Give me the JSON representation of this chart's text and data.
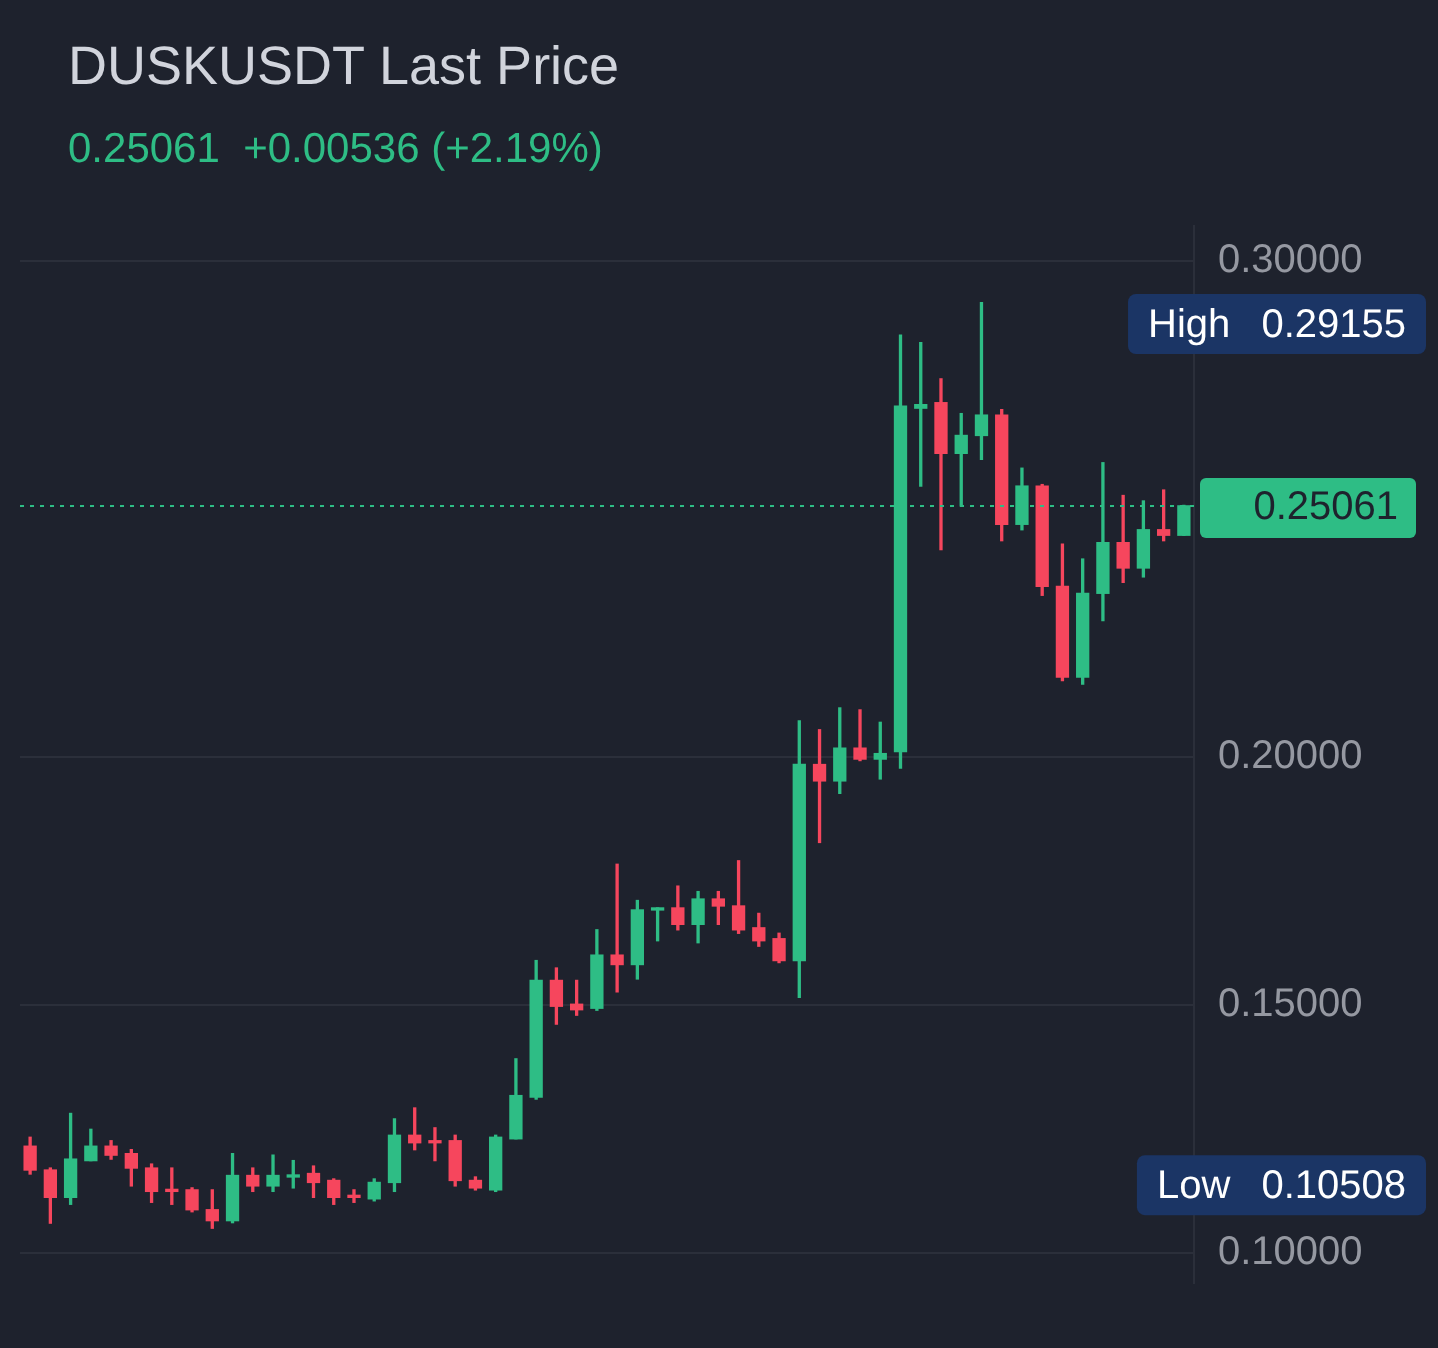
{
  "chart_data": {
    "type": "candlestick",
    "title": "DUSKUSDT Last Price",
    "subtitle": "0.25061  +0.00536 (+2.19%)",
    "categories": [
      null,
      null,
      null,
      null,
      null,
      null,
      null,
      null,
      null,
      null,
      null,
      null,
      null,
      null,
      null,
      null,
      null,
      null,
      null,
      null,
      null,
      null,
      null,
      null,
      null,
      null,
      null,
      null,
      null,
      null,
      null,
      null,
      null,
      null,
      null,
      null,
      null,
      null,
      null,
      null,
      null,
      null,
      null,
      null,
      null,
      null,
      null,
      null,
      null,
      null,
      null,
      null,
      null,
      null,
      null,
      null,
      null,
      null
    ],
    "ohlc": [
      [
        0.1216,
        0.1234,
        0.116,
        0.1168
      ],
      [
        0.1168,
        0.1172,
        0.1061,
        0.1113
      ],
      [
        0.1113,
        0.1282,
        0.1099,
        0.119
      ],
      [
        0.1187,
        0.125,
        0.1187,
        0.1216
      ],
      [
        0.1216,
        0.1227,
        0.119,
        0.1198
      ],
      [
        0.1201,
        0.1209,
        0.1136,
        0.1172
      ],
      [
        0.1172,
        0.118,
        0.1103,
        0.1125
      ],
      [
        0.1128,
        0.1172,
        0.1099,
        0.1125
      ],
      [
        0.1128,
        0.1132,
        0.1084,
        0.1088
      ],
      [
        0.1088,
        0.1128,
        0.10508,
        0.1066
      ],
      [
        0.1066,
        0.1201,
        0.1062,
        0.1157
      ],
      [
        0.1157,
        0.1172,
        0.1125,
        0.1136
      ],
      [
        0.1136,
        0.1198,
        0.1125,
        0.1157
      ],
      [
        0.1154,
        0.1187,
        0.1132,
        0.1157
      ],
      [
        0.1161,
        0.1176,
        0.1113,
        0.1143
      ],
      [
        0.1147,
        0.115,
        0.1099,
        0.1113
      ],
      [
        0.1117,
        0.1128,
        0.1103,
        0.1113
      ],
      [
        0.111,
        0.115,
        0.1106,
        0.1143
      ],
      [
        0.1143,
        0.1271,
        0.1125,
        0.1238
      ],
      [
        0.1238,
        0.1293,
        0.1209,
        0.1223
      ],
      [
        0.1227,
        0.1253,
        0.1187,
        0.1223
      ],
      [
        0.1227,
        0.1238,
        0.1136,
        0.1147
      ],
      [
        0.1147,
        0.1154,
        0.1128,
        0.1132
      ],
      [
        0.1128,
        0.1238,
        0.1125,
        0.1234
      ],
      [
        0.1231,
        0.1392,
        0.1231,
        0.1318
      ],
      [
        0.1315,
        0.159,
        0.1311,
        0.155
      ],
      [
        0.155,
        0.1575,
        0.1462,
        0.1498
      ],
      [
        0.1502,
        0.155,
        0.148,
        0.1491
      ],
      [
        0.1494,
        0.1652,
        0.149,
        0.1601
      ],
      [
        0.1601,
        0.1784,
        0.1527,
        0.1582
      ],
      [
        0.1582,
        0.1711,
        0.1553,
        0.1692
      ],
      [
        0.1692,
        0.1696,
        0.163,
        0.1696
      ],
      [
        0.1696,
        0.174,
        0.1652,
        0.1663
      ],
      [
        0.1663,
        0.1729,
        0.1626,
        0.1714
      ],
      [
        0.1714,
        0.1729,
        0.1663,
        0.17
      ],
      [
        0.17,
        0.1791,
        0.1645,
        0.1652
      ],
      [
        0.1656,
        0.1685,
        0.1619,
        0.163
      ],
      [
        0.1634,
        0.1645,
        0.1586,
        0.159
      ],
      [
        0.159,
        0.2073,
        0.1516,
        0.1985
      ],
      [
        0.1985,
        0.2055,
        0.1828,
        0.1952
      ],
      [
        0.1952,
        0.2099,
        0.1927,
        0.2018
      ],
      [
        0.2018,
        0.2095,
        0.1993,
        0.1996
      ],
      [
        0.1996,
        0.207,
        0.1956,
        0.2007
      ],
      [
        0.2011,
        0.285,
        0.1978,
        0.2707
      ],
      [
        0.2703,
        0.2835,
        0.2546,
        0.271
      ],
      [
        0.2714,
        0.2762,
        0.2418,
        0.2612
      ],
      [
        0.2612,
        0.2692,
        0.2506,
        0.2648
      ],
      [
        0.2648,
        0.29155,
        0.26,
        0.2689
      ],
      [
        0.2689,
        0.27,
        0.2436,
        0.2469
      ],
      [
        0.2469,
        0.2582,
        0.2458,
        0.2546
      ],
      [
        0.2546,
        0.2549,
        0.2326,
        0.2344
      ],
      [
        0.2344,
        0.2429,
        0.2154,
        0.2161
      ],
      [
        0.2161,
        0.2399,
        0.2147,
        0.233
      ],
      [
        0.233,
        0.2593,
        0.2275,
        0.2432
      ],
      [
        0.2432,
        0.2527,
        0.2352,
        0.2381
      ],
      [
        0.2381,
        0.2516,
        0.2363,
        0.2458
      ],
      [
        0.2458,
        0.2538,
        0.2436,
        0.2447
      ],
      [
        0.2447,
        0.2507,
        0.2447,
        0.25061
      ]
    ],
    "ylim": [
      0.094,
      0.307
    ],
    "yticks": [
      {
        "value": 0.1,
        "label": "0.10000"
      },
      {
        "value": 0.15,
        "label": "0.15000"
      },
      {
        "value": 0.2,
        "label": "0.20000"
      },
      {
        "value": 0.3,
        "label": "0.30000"
      }
    ],
    "grid": "y",
    "ref_lines": [
      {
        "axis": "y",
        "value": 0.25061,
        "label": "0.25061",
        "color": "#2ebd85",
        "line_style": "dotted"
      }
    ],
    "annotations": [
      "High 0.29155",
      "Low 0.10508"
    ]
  }
}
